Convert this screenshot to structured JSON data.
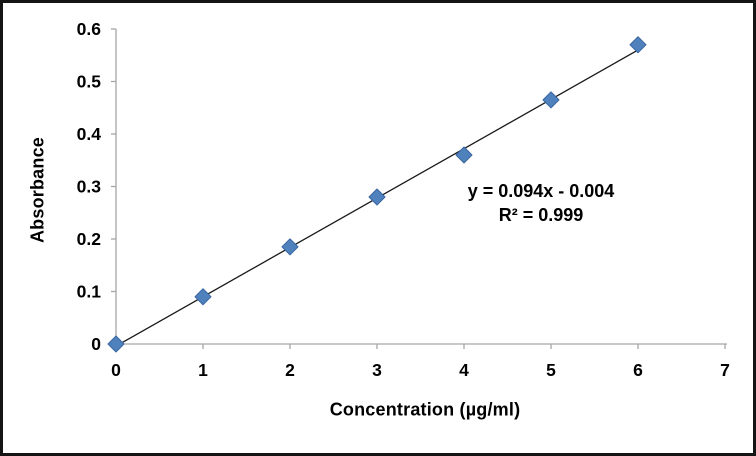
{
  "chart_data": {
    "type": "scatter",
    "title": "",
    "xlabel": "Concentration (µg/ml)",
    "ylabel": "Absorbance",
    "x": [
      0,
      1,
      2,
      3,
      4,
      5,
      6
    ],
    "series": [
      {
        "name": "Absorbance",
        "values": [
          0,
          0.09,
          0.185,
          0.28,
          0.36,
          0.465,
          0.57
        ]
      }
    ],
    "xlim": [
      0,
      7
    ],
    "ylim": [
      0,
      0.6
    ],
    "x_ticks": [
      0,
      1,
      2,
      3,
      4,
      5,
      6,
      7
    ],
    "x_tick_labels": [
      "0",
      "1",
      "2",
      "3",
      "4",
      "5",
      "6",
      "7"
    ],
    "y_ticks": [
      0,
      0.1,
      0.2,
      0.3,
      0.4,
      0.5,
      0.6
    ],
    "y_tick_labels": [
      "0",
      "0.1",
      "0.2",
      "0.3",
      "0.4",
      "0.5",
      "0.6"
    ],
    "grid": false,
    "legend": "none",
    "trendline": {
      "slope": 0.094,
      "intercept": -0.004,
      "x_start": 0,
      "x_end": 6
    },
    "annotation": {
      "line1": "y = 0.094x - 0.004",
      "line2": "R² = 0.999"
    },
    "marker": {
      "shape": "diamond",
      "size": 16,
      "color": "#4F81BD",
      "edge": "#3A67A3"
    },
    "colors": {
      "axis": "#A6A6A6",
      "trendline": "#1A1A1A",
      "text": "#000000",
      "frame_border": "#151515"
    }
  }
}
